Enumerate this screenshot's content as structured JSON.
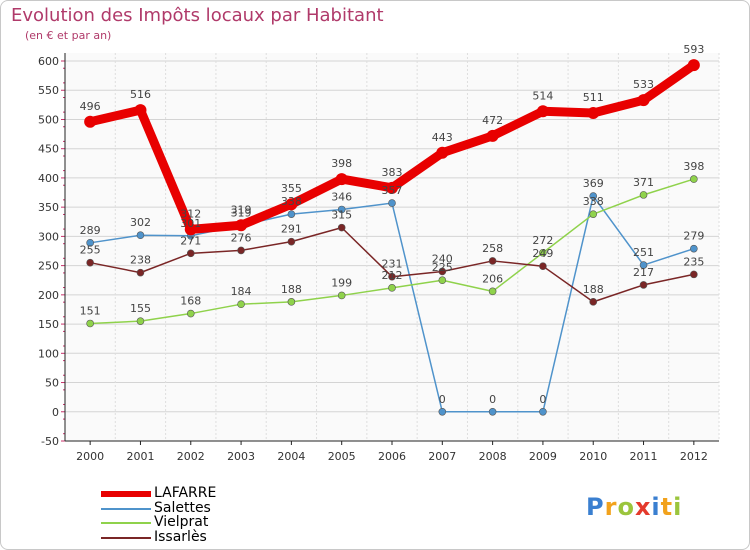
{
  "chart_data": {
    "type": "line",
    "title": "Evolution des Impôts locaux par Habitant",
    "subtitle": "(en € et par an)",
    "x": [
      "2000",
      "2001",
      "2002",
      "2003",
      "2004",
      "2005",
      "2006",
      "2007",
      "2008",
      "2009",
      "2010",
      "2011",
      "2012"
    ],
    "ylim": [
      -50,
      600
    ],
    "yticks": [
      -50,
      0,
      50,
      100,
      150,
      200,
      250,
      300,
      350,
      400,
      450,
      500,
      550,
      600
    ],
    "grid": true,
    "series": [
      {
        "name": "LAFARRE",
        "color": "#e80000",
        "values": [
          496,
          516,
          312,
          319,
          355,
          398,
          383,
          443,
          472,
          514,
          511,
          533,
          593
        ]
      },
      {
        "name": "Salettes",
        "color": "#4f93cb",
        "values": [
          289,
          302,
          301,
          319,
          338,
          346,
          357,
          0,
          0,
          0,
          369,
          251,
          279
        ]
      },
      {
        "name": "Vielprat",
        "color": "#8fd24b",
        "values": [
          151,
          155,
          168,
          184,
          188,
          199,
          212,
          225,
          206,
          272,
          338,
          371,
          398
        ]
      },
      {
        "name": "Issarlès",
        "color": "#7a2626",
        "values": [
          255,
          238,
          271,
          276,
          291,
          315,
          231,
          240,
          258,
          249,
          188,
          217,
          235
        ]
      }
    ]
  },
  "logo": {
    "p": "P",
    "r": "r",
    "o": "o",
    "x": "x",
    "i1": "i",
    "t": "t",
    "i2": "i"
  }
}
